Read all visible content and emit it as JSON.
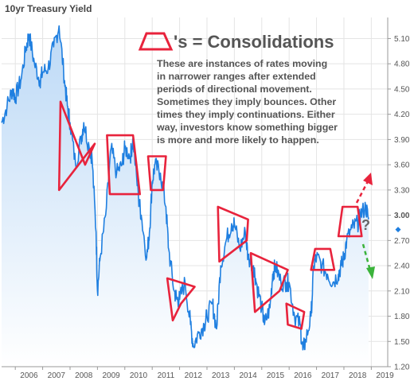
{
  "chart_data": {
    "type": "line",
    "title": "10yr Treasury Yield",
    "x_ticks": [
      "2006",
      "2007",
      "2008",
      "2009",
      "2010",
      "2011",
      "2012",
      "2013",
      "2014",
      "2015",
      "2016",
      "2017",
      "2018",
      "2019"
    ],
    "y_ticks": [
      "5.10",
      "4.80",
      "4.50",
      "4.20",
      "3.90",
      "3.60",
      "3.30",
      "3.00",
      "2.70",
      "2.40",
      "2.10",
      "1.80",
      "1.50",
      "1.20"
    ],
    "highlighted_tick": "3.00",
    "xlim": [
      2005.5,
      2019.6
    ],
    "ylim": [
      1.2,
      5.35
    ],
    "grid": true,
    "series": [
      {
        "color": "#1f7fe0",
        "x": [
          2005.5,
          2005.7,
          2005.9,
          2006.0,
          2006.2,
          2006.4,
          2006.5,
          2006.7,
          2006.9,
          2007.0,
          2007.2,
          2007.4,
          2007.6,
          2007.8,
          2007.9,
          2008.0,
          2008.2,
          2008.4,
          2008.5,
          2008.7,
          2008.8,
          2008.95,
          2009.0,
          2009.1,
          2009.3,
          2009.5,
          2009.7,
          2009.9,
          2010.0,
          2010.2,
          2010.3,
          2010.5,
          2010.6,
          2010.8,
          2010.9,
          2011.0,
          2011.1,
          2011.3,
          2011.5,
          2011.6,
          2011.8,
          2011.9,
          2012.0,
          2012.2,
          2012.4,
          2012.5,
          2012.7,
          2012.9,
          2013.0,
          2013.2,
          2013.35,
          2013.5,
          2013.7,
          2013.9,
          2014.0,
          2014.2,
          2014.4,
          2014.5,
          2014.7,
          2014.8,
          2015.0,
          2015.1,
          2015.3,
          2015.4,
          2015.5,
          2015.7,
          2015.9,
          2016.0,
          2016.2,
          2016.4,
          2016.5,
          2016.6,
          2016.8,
          2016.9,
          2017.0,
          2017.2,
          2017.4,
          2017.6,
          2017.8,
          2017.9,
          2018.0,
          2018.1,
          2018.3,
          2018.5,
          2018.6,
          2018.8,
          2018.9
        ],
        "y": [
          4.1,
          4.3,
          4.5,
          4.4,
          4.6,
          5.0,
          5.15,
          4.8,
          4.6,
          4.7,
          4.75,
          5.0,
          5.25,
          4.6,
          4.3,
          4.1,
          3.6,
          3.9,
          4.1,
          3.8,
          3.7,
          2.8,
          2.1,
          2.5,
          3.0,
          3.8,
          3.5,
          3.6,
          3.8,
          3.7,
          3.9,
          3.2,
          3.0,
          2.5,
          2.8,
          3.4,
          3.6,
          3.5,
          3.1,
          2.6,
          2.1,
          2.0,
          2.0,
          2.2,
          1.7,
          1.45,
          1.6,
          1.7,
          1.8,
          1.95,
          1.65,
          2.4,
          2.7,
          2.9,
          2.9,
          2.6,
          2.8,
          2.5,
          2.4,
          2.2,
          1.9,
          1.7,
          1.9,
          2.3,
          2.4,
          2.2,
          2.2,
          2.2,
          1.8,
          1.7,
          1.4,
          1.5,
          1.8,
          2.4,
          2.5,
          2.4,
          2.3,
          2.2,
          2.3,
          2.4,
          2.5,
          2.7,
          2.85,
          2.9,
          3.0,
          3.1,
          2.95
        ]
      }
    ],
    "annotations": {
      "heading": "'s  = Consolidations",
      "lines": [
        "These are instances of rates moving",
        "in narrower ranges after extended",
        "periods of directional movement.",
        "Sometimes they imply bounces.  Other",
        "times they imply continuations.  Either",
        "way, investors know something bigger",
        "is more and more likely to happen."
      ],
      "question_mark": "?",
      "trapezoid_color": "#e8233c",
      "up_arrow_color": "#e8233c",
      "down_arrow_color": "#3bb33b",
      "consolidations": [
        {
          "x": [
            2007.6,
            2007.65,
            2008.55,
            2008.9
          ],
          "y": [
            3.3,
            4.35,
            3.6,
            3.85
          ]
        },
        {
          "x": [
            2009.35,
            2009.45,
            2010.55,
            2010.3
          ],
          "y": [
            3.95,
            3.25,
            3.25,
            3.95
          ]
        },
        {
          "x": [
            2010.85,
            2010.95,
            2011.4,
            2011.5
          ],
          "y": [
            3.7,
            3.3,
            3.3,
            3.7
          ]
        },
        {
          "x": [
            2011.55,
            2011.75,
            2012.05,
            2012.55
          ],
          "y": [
            2.25,
            1.75,
            1.95,
            2.15
          ]
        },
        {
          "x": [
            2013.4,
            2013.45,
            2014.45,
            2014.5
          ],
          "y": [
            3.1,
            2.45,
            2.7,
            2.95
          ]
        },
        {
          "x": [
            2014.6,
            2014.75,
            2015.65,
            2015.95
          ],
          "y": [
            2.55,
            1.85,
            2.1,
            2.35
          ]
        },
        {
          "x": [
            2015.9,
            2015.95,
            2016.45,
            2016.55
          ],
          "y": [
            1.95,
            1.7,
            1.65,
            1.85
          ]
        },
        {
          "x": [
            2016.8,
            2016.95,
            2017.5,
            2017.65
          ],
          "y": [
            2.35,
            2.6,
            2.6,
            2.35
          ]
        },
        {
          "x": [
            2017.8,
            2017.95,
            2018.5,
            2018.65
          ],
          "y": [
            2.75,
            3.1,
            3.1,
            2.75
          ]
        }
      ]
    }
  }
}
